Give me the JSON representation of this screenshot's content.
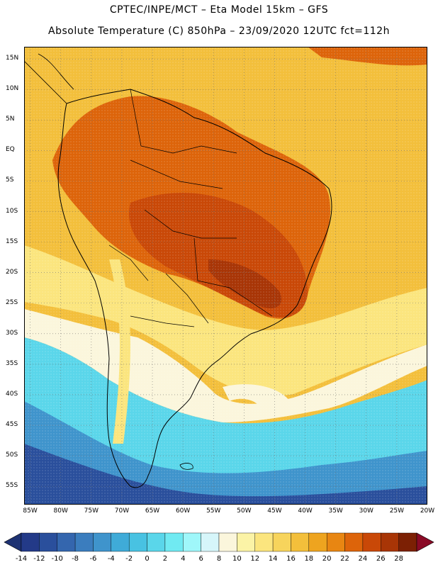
{
  "header": {
    "line1": "CPTEC/INPE/MCT –  Eta Model 15km – GFS",
    "line2": "Absolute Temperature (C) 850hPa – 23/09/2020 12UTC fct=112h"
  },
  "map": {
    "lat_labels": [
      "15N",
      "10N",
      "5N",
      "EQ",
      "5S",
      "10S",
      "15S",
      "20S",
      "25S",
      "30S",
      "35S",
      "40S",
      "45S",
      "50S",
      "55S"
    ],
    "lon_labels": [
      "85W",
      "80W",
      "75W",
      "70W",
      "65W",
      "60W",
      "55W",
      "50W",
      "45W",
      "40W",
      "35W",
      "30W",
      "25W",
      "20W"
    ],
    "lat_range": [
      17,
      -58
    ],
    "lon_range": [
      -86,
      -20
    ]
  },
  "colorbar": {
    "labels": [
      "-14",
      "-12",
      "-10",
      "-8",
      "-6",
      "-4",
      "-2",
      "0",
      "2",
      "4",
      "6",
      "8",
      "10",
      "12",
      "14",
      "16",
      "18",
      "20",
      "22",
      "24",
      "26",
      "28"
    ],
    "colors": [
      "#233a88",
      "#2a4f9c",
      "#3466ae",
      "#3b7dbe",
      "#3f94cc",
      "#3fabd8",
      "#48c2e2",
      "#5ad6ea",
      "#70eaf2",
      "#9ff7fa",
      "#d6f6fa",
      "#fbf6dc",
      "#fbf3a6",
      "#fbe57e",
      "#f7d45c",
      "#f3bf3b",
      "#eea41f",
      "#e88612",
      "#dd640a",
      "#c94807",
      "#a83506",
      "#7c2004"
    ],
    "under_color": "#1e3273",
    "over_color": "#8a0a26"
  }
}
